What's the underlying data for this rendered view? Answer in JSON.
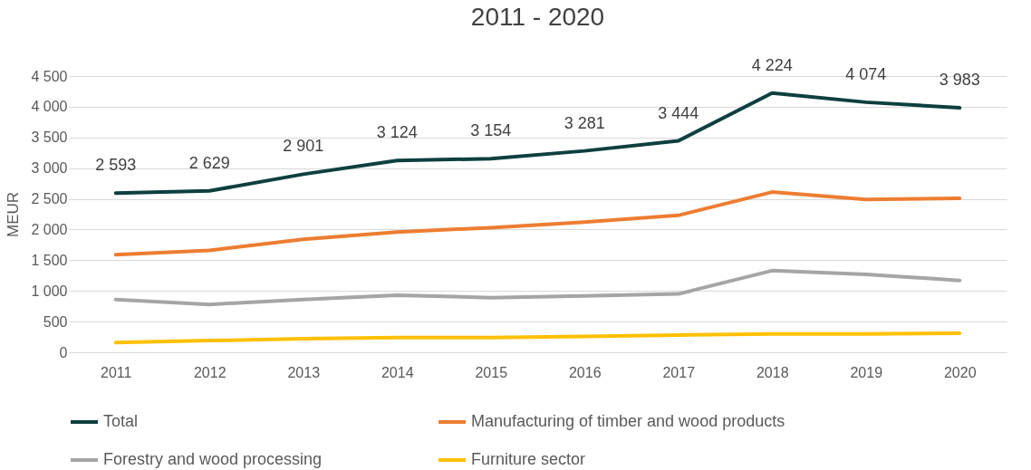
{
  "chart_data": {
    "type": "line",
    "title": "2011 - 2020",
    "ylabel": "MEUR",
    "categories": [
      "2011",
      "2012",
      "2013",
      "2014",
      "2015",
      "2016",
      "2017",
      "2018",
      "2019",
      "2020"
    ],
    "ylim": [
      0,
      4500
    ],
    "yticks": [
      0,
      500,
      {
        "value": 1000,
        "label": "1 000"
      },
      {
        "value": 1500,
        "label": "1 500"
      },
      {
        "value": 2000,
        "label": "2 000"
      },
      {
        "value": 2500,
        "label": "2 500"
      },
      {
        "value": 3000,
        "label": "3 000"
      },
      {
        "value": 3500,
        "label": "3 500"
      },
      {
        "value": 4000,
        "label": "4 000"
      },
      {
        "value": 4500,
        "label": "4 500"
      }
    ],
    "grid": "y",
    "legend": "bottom",
    "marker": "none",
    "line_style": "solid",
    "series": [
      {
        "name": "Total",
        "color": "#0f3f3f",
        "values": [
          2593,
          2629,
          2901,
          3124,
          3154,
          3281,
          3444,
          4224,
          4074,
          3983
        ],
        "value_labels": [
          "2 593",
          "2 629",
          "2 901",
          "3 124",
          "3 154",
          "3 281",
          "3 444",
          "4 224",
          "4 074",
          "3 983"
        ]
      },
      {
        "name": "Manufacturing of timber and wood products",
        "color": "#ed7d31",
        "values": [
          1590,
          1660,
          1840,
          1960,
          2030,
          2120,
          2230,
          2610,
          2490,
          2510
        ]
      },
      {
        "name": "Forestry and wood processing",
        "color": "#a5a5a5",
        "values": [
          860,
          780,
          860,
          930,
          890,
          920,
          950,
          1330,
          1270,
          1170
        ]
      },
      {
        "name": "Furniture sector",
        "color": "#ffc000",
        "values": [
          160,
          190,
          220,
          240,
          240,
          260,
          280,
          300,
          300,
          310
        ]
      }
    ]
  }
}
